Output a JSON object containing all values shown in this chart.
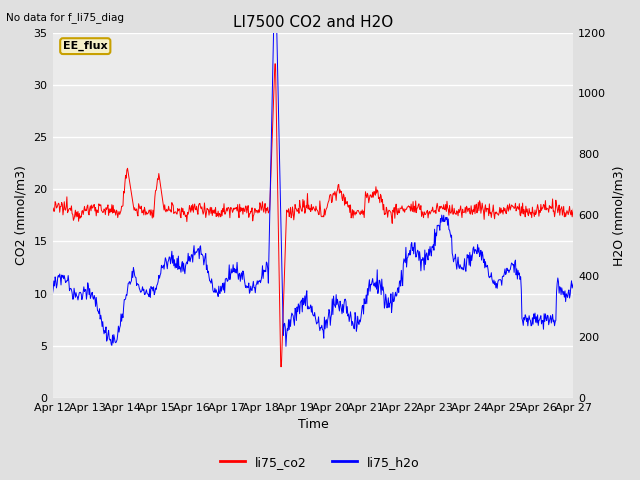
{
  "title": "LI7500 CO2 and H2O",
  "top_left_text": "No data for f_li75_diag",
  "xlabel": "Time",
  "ylabel_left": "CO2 (mmol/m3)",
  "ylabel_right": "H2O (mmol/m3)",
  "annotation_box": "EE_flux",
  "ylim_left": [
    0,
    35
  ],
  "ylim_right": [
    0,
    1200
  ],
  "yticks_left": [
    0,
    5,
    10,
    15,
    20,
    25,
    30,
    35
  ],
  "yticks_right": [
    0,
    200,
    400,
    600,
    800,
    1000,
    1200
  ],
  "bg_color": "#e0e0e0",
  "plot_bg_color": "#ebebeb",
  "grid_color": "#ffffff",
  "co2_color": "red",
  "h2o_color": "blue",
  "co2_linewidth": 0.7,
  "h2o_linewidth": 0.7,
  "xtick_labels": [
    "Apr 12",
    "Apr 13",
    "Apr 14",
    "Apr 15",
    "Apr 16",
    "Apr 17",
    "Apr 18",
    "Apr 19",
    "Apr 20",
    "Apr 21",
    "Apr 22",
    "Apr 23",
    "Apr 24",
    "Apr 25",
    "Apr 26",
    "Apr 27"
  ],
  "legend_labels": [
    "li75_co2",
    "li75_h2o"
  ],
  "legend_colors": [
    "red",
    "blue"
  ],
  "figsize": [
    6.4,
    4.8
  ],
  "dpi": 100
}
